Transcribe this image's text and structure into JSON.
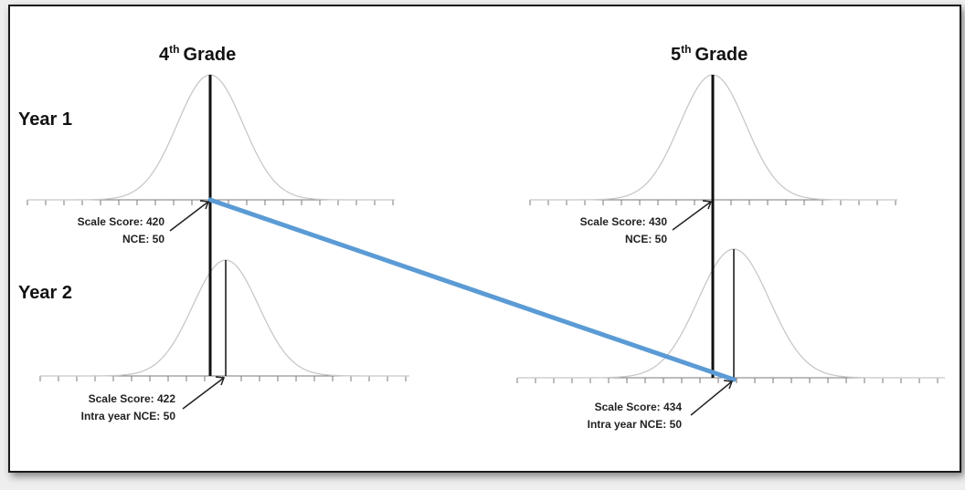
{
  "grades": [
    {
      "label": "4",
      "suffix": "th",
      "word": "Grade"
    },
    {
      "label": "5",
      "suffix": "th",
      "word": "Grade"
    }
  ],
  "rows": [
    {
      "label": "Year 1"
    },
    {
      "label": "Year 2"
    }
  ],
  "annotations": {
    "g4y1": {
      "line1": "Scale Score: 420",
      "line2": "NCE: 50"
    },
    "g5y1": {
      "line1": "Scale Score: 430",
      "line2": "NCE: 50"
    },
    "g4y2": {
      "line1": "Scale Score: 422",
      "line2": "Intra year NCE: 50"
    },
    "g5y2": {
      "line1": "Scale Score: 434",
      "line2": "Intra year NCE: 50"
    }
  },
  "colors": {
    "curve": "#c8c8c8",
    "axis": "#7a7a7a",
    "marker": "#111111",
    "growth_line": "#5b9bd5"
  }
}
